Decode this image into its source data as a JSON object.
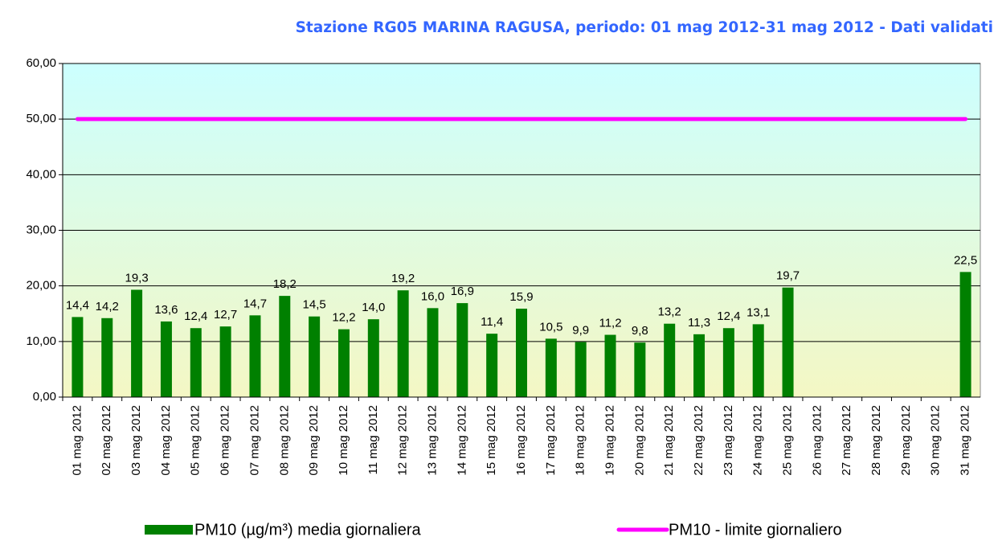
{
  "chart_data": {
    "type": "bar",
    "title": "Stazione RG05 MARINA RAGUSA, periodo: 01 mag 2012-31 mag 2012 - Dati validati",
    "categories": [
      "01 mag 2012",
      "02 mag 2012",
      "03 mag 2012",
      "04 mag 2012",
      "05 mag 2012",
      "06 mag 2012",
      "07 mag 2012",
      "08 mag 2012",
      "09 mag 2012",
      "10 mag 2012",
      "11 mag 2012",
      "12 mag 2012",
      "13 mag 2012",
      "14 mag 2012",
      "15 mag 2012",
      "16 mag 2012",
      "17 mag 2012",
      "18 mag 2012",
      "19 mag 2012",
      "20 mag 2012",
      "21 mag 2012",
      "22 mag 2012",
      "23 mag 2012",
      "24 mag 2012",
      "25 mag 2012",
      "26 mag 2012",
      "27 mag 2012",
      "28 mag 2012",
      "29 mag 2012",
      "30 mag 2012",
      "31 mag 2012"
    ],
    "series": [
      {
        "name": "PM10 (µg/m³) media giornaliera",
        "type": "bar",
        "color": "#008000",
        "values": [
          14.4,
          14.2,
          19.3,
          13.6,
          12.4,
          12.7,
          14.7,
          18.2,
          14.5,
          12.2,
          14.0,
          19.2,
          16.0,
          16.9,
          11.4,
          15.9,
          10.5,
          9.9,
          11.2,
          9.8,
          13.2,
          11.3,
          12.4,
          13.1,
          19.7,
          null,
          null,
          null,
          null,
          null,
          22.5
        ],
        "value_labels": [
          "14,4",
          "14,2",
          "19,3",
          "13,6",
          "12,4",
          "12,7",
          "14,7",
          "18,2",
          "14,5",
          "12,2",
          "14,0",
          "19,2",
          "16,0",
          "16,9",
          "11,4",
          "15,9",
          "10,5",
          "9,9",
          "11,2",
          "9,8",
          "13,2",
          "11,3",
          "12,4",
          "13,1",
          "19,7",
          null,
          null,
          null,
          null,
          null,
          "22,5"
        ]
      },
      {
        "name": "PM10 - limite giornaliero",
        "type": "line",
        "color": "#ff00ff",
        "values": [
          50,
          50,
          50,
          50,
          50,
          50,
          50,
          50,
          50,
          50,
          50,
          50,
          50,
          50,
          50,
          50,
          50,
          50,
          50,
          50,
          50,
          50,
          50,
          50,
          50,
          50,
          50,
          50,
          50,
          50,
          50
        ]
      }
    ],
    "ylim": [
      0,
      60
    ],
    "yticks": [
      {
        "value": 0,
        "label": "0,00"
      },
      {
        "value": 10,
        "label": "10,00"
      },
      {
        "value": 20,
        "label": "20,00"
      },
      {
        "value": 30,
        "label": "30,00"
      },
      {
        "value": 40,
        "label": "40,00"
      },
      {
        "value": 50,
        "label": "50,00"
      },
      {
        "value": 60,
        "label": "60,00"
      }
    ],
    "grid": true,
    "legend": "bottom"
  }
}
